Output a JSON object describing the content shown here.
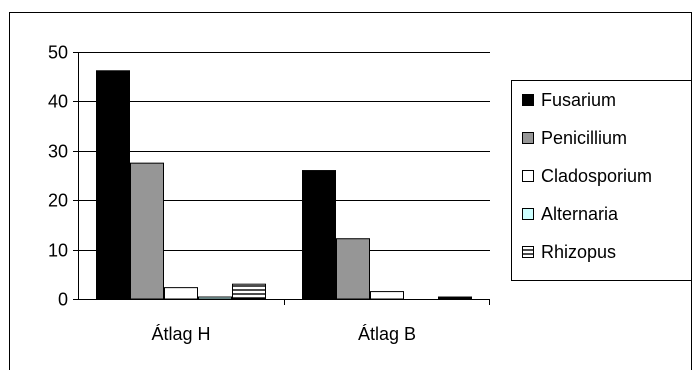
{
  "chart_data": {
    "type": "bar",
    "categories": [
      "Átlag H",
      "Átlag B"
    ],
    "series": [
      {
        "name": "Fusarium",
        "values": [
          46.2,
          26.0
        ],
        "color": "#000000",
        "pattern": "solid"
      },
      {
        "name": "Penicillium",
        "values": [
          27.5,
          12.2
        ],
        "color": "#969696",
        "pattern": "solid"
      },
      {
        "name": "Cladosporium",
        "values": [
          2.3,
          1.5
        ],
        "color": "#ffffff",
        "pattern": "solid"
      },
      {
        "name": "Alternaria",
        "values": [
          0.4,
          0.0
        ],
        "color": "#ccffff",
        "pattern": "solid"
      },
      {
        "name": "Rhizopus",
        "values": [
          3.0,
          0.4
        ],
        "color": "#ffffff",
        "pattern": "horizontal-stripe"
      }
    ],
    "ylim": [
      0,
      50
    ],
    "yticks": [
      0,
      10,
      20,
      30,
      40,
      50
    ],
    "grid": true,
    "legend_position": "right"
  }
}
